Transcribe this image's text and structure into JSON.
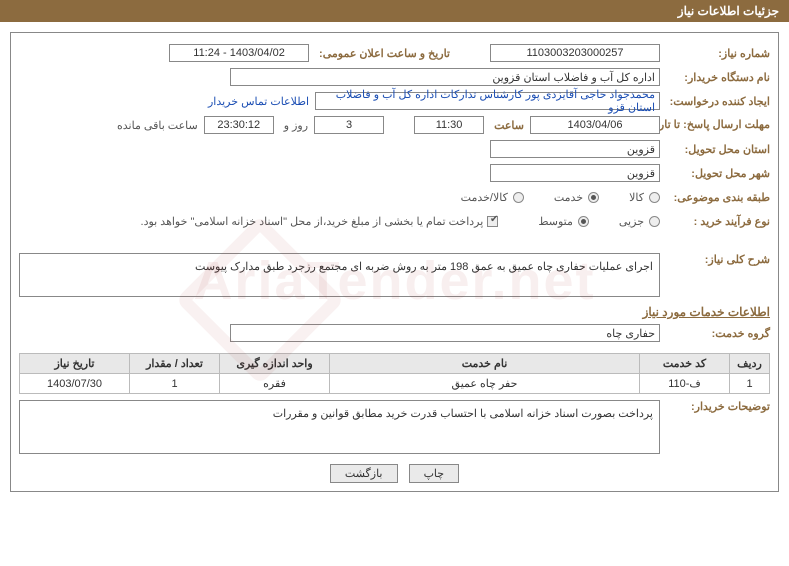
{
  "header_title": "جزئیات اطلاعات نیاز",
  "labels": {
    "niaz_no": "شماره نیاز:",
    "announce_date": "تاریخ و ساعت اعلان عمومی:",
    "buyer_org": "نام دستگاه خریدار:",
    "requester": "ایجاد کننده درخواست:",
    "deadline": "مهلت ارسال پاسخ: تا تاریخ:",
    "time_word": "ساعت",
    "days_and": "روز و",
    "time_remain": "ساعت باقی مانده",
    "deliver_prov": "استان محل تحویل:",
    "deliver_city": "شهر محل تحویل:",
    "subject_class": "طبقه بندی موضوعی:",
    "purchase_type": "نوع فرآیند خرید :",
    "kala": "کالا",
    "khedmat": "خدمت",
    "kala_khedmat": "کالا/خدمت",
    "jozi": "جزیی",
    "motevaset": "متوسط",
    "payment_note": "پرداخت تمام یا بخشی از مبلغ خرید،از محل \"اسناد خزانه اسلامی\" خواهد بود.",
    "sharh": "شرح کلی نیاز:",
    "service_info": "اطلاعات خدمات مورد نیاز",
    "service_group": "گروه خدمت:",
    "buyer_note": "توضیحات خریدار:",
    "contact_link": "اطلاعات تماس خریدار"
  },
  "values": {
    "niaz_no": "1103003203000257",
    "announce_date": "1403/04/02 - 11:24",
    "buyer_org": "اداره کل آب و فاضلاب استان قزوین",
    "requester": "محمدجواد حاجی آقایزدی پور کارشناس تدارکات اداره کل آب و فاضلاب استان قزو",
    "deadline_date": "1403/04/06",
    "deadline_time": "11:30",
    "days_left": "3",
    "hms_left": "23:30:12",
    "deliver_prov": "قزوین",
    "deliver_city": "قزوین",
    "sharh_text": "اجرای عملیات حفاری چاه عمیق به عمق 198 متر  به روش ضربه ای مجتمع رزجرد طبق مدارک پیوست",
    "service_group": "حفاری چاه",
    "buyer_note_text": "پرداخت بصورت اسناد خزانه اسلامی با احتساب قدرت خرید مطابق قوانین و مقررات"
  },
  "grid": {
    "columns": [
      "ردیف",
      "کد خدمت",
      "نام خدمت",
      "واحد اندازه گیری",
      "تعداد / مقدار",
      "تاریخ نیاز"
    ],
    "col_widths": [
      "40px",
      "90px",
      "auto",
      "110px",
      "90px",
      "110px"
    ],
    "rows": [
      [
        "1",
        "ف-110",
        "حفر چاه عمیق",
        "فقره",
        "1",
        "1403/07/30"
      ]
    ]
  },
  "buttons": {
    "print": "چاپ",
    "back": "بازگشت"
  },
  "colors": {
    "header_bg": "#8c6b3f",
    "label_color": "#8c6b3f",
    "border": "#888888",
    "link": "#1a4db3"
  },
  "watermark_text": "AriaTender.net"
}
